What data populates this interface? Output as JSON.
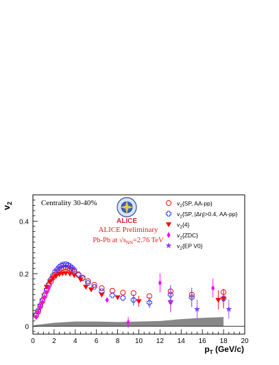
{
  "chart_data": {
    "type": "scatter",
    "title": "",
    "xlabel": "p_T (GeV/c)",
    "ylabel": "v_2",
    "xlim": [
      0,
      20
    ],
    "ylim": [
      -0.03,
      0.5
    ],
    "x_ticks": [
      "0",
      "2",
      "4",
      "6",
      "8",
      "10",
      "12",
      "14",
      "16",
      "18",
      "20"
    ],
    "y_ticks": [
      "0",
      "0.2",
      "0.4"
    ],
    "annotations": {
      "centrality": "Centrality 30-40%",
      "preliminary": "ALICE Preliminary",
      "system": "Pb-Pb at √s",
      "system_sub": "NN",
      "system_value": "=2.76 TeV",
      "logo_text": "ALICE"
    },
    "legend_position": "top-right",
    "series": [
      {
        "name": "v2{SP, AA-pp}",
        "marker": "open-circle",
        "color": "#ff0000",
        "points": [
          {
            "x": 0.3,
            "y": 0.04
          },
          {
            "x": 0.5,
            "y": 0.055
          },
          {
            "x": 0.7,
            "y": 0.075
          },
          {
            "x": 0.9,
            "y": 0.095
          },
          {
            "x": 1.1,
            "y": 0.115
          },
          {
            "x": 1.3,
            "y": 0.135
          },
          {
            "x": 1.5,
            "y": 0.155
          },
          {
            "x": 1.7,
            "y": 0.17
          },
          {
            "x": 1.9,
            "y": 0.185
          },
          {
            "x": 2.1,
            "y": 0.197
          },
          {
            "x": 2.3,
            "y": 0.207
          },
          {
            "x": 2.5,
            "y": 0.215
          },
          {
            "x": 2.7,
            "y": 0.22
          },
          {
            "x": 2.9,
            "y": 0.222
          },
          {
            "x": 3.1,
            "y": 0.223
          },
          {
            "x": 3.3,
            "y": 0.222
          },
          {
            "x": 3.5,
            "y": 0.218
          },
          {
            "x": 3.7,
            "y": 0.213
          },
          {
            "x": 3.9,
            "y": 0.208
          },
          {
            "x": 4.3,
            "y": 0.195
          },
          {
            "x": 4.7,
            "y": 0.185
          },
          {
            "x": 5.2,
            "y": 0.172
          },
          {
            "x": 5.8,
            "y": 0.158
          },
          {
            "x": 6.5,
            "y": 0.145
          },
          {
            "x": 7.5,
            "y": 0.135
          },
          {
            "x": 8.5,
            "y": 0.128
          },
          {
            "x": 9.5,
            "y": 0.126
          },
          {
            "x": 11.0,
            "y": 0.115
          },
          {
            "x": 13.0,
            "y": 0.133
          },
          {
            "x": 15.0,
            "y": 0.12
          },
          {
            "x": 18.0,
            "y": 0.13
          }
        ]
      },
      {
        "name": "v2{SP, |Δη|>0.4, AA-pp}",
        "marker": "open-cross",
        "color": "#3333ff",
        "points": [
          {
            "x": 0.3,
            "y": 0.045
          },
          {
            "x": 0.5,
            "y": 0.06
          },
          {
            "x": 0.7,
            "y": 0.08
          },
          {
            "x": 0.9,
            "y": 0.1
          },
          {
            "x": 1.1,
            "y": 0.12
          },
          {
            "x": 1.3,
            "y": 0.14
          },
          {
            "x": 1.5,
            "y": 0.16
          },
          {
            "x": 1.7,
            "y": 0.178
          },
          {
            "x": 1.9,
            "y": 0.193
          },
          {
            "x": 2.1,
            "y": 0.207
          },
          {
            "x": 2.3,
            "y": 0.217
          },
          {
            "x": 2.5,
            "y": 0.226
          },
          {
            "x": 2.7,
            "y": 0.232
          },
          {
            "x": 2.9,
            "y": 0.235
          },
          {
            "x": 3.1,
            "y": 0.236
          },
          {
            "x": 3.3,
            "y": 0.234
          },
          {
            "x": 3.5,
            "y": 0.229
          },
          {
            "x": 3.7,
            "y": 0.222
          },
          {
            "x": 3.9,
            "y": 0.214
          },
          {
            "x": 4.3,
            "y": 0.198
          },
          {
            "x": 4.7,
            "y": 0.183
          },
          {
            "x": 5.2,
            "y": 0.165
          },
          {
            "x": 5.8,
            "y": 0.15
          },
          {
            "x": 6.5,
            "y": 0.133
          },
          {
            "x": 7.5,
            "y": 0.118
          },
          {
            "x": 8.5,
            "y": 0.108
          },
          {
            "x": 9.5,
            "y": 0.1
          },
          {
            "x": 11.0,
            "y": 0.09
          },
          {
            "x": 13.0,
            "y": 0.12
          },
          {
            "x": 15.0,
            "y": 0.11
          },
          {
            "x": 18.0,
            "y": 0.105
          }
        ]
      },
      {
        "name": "v2{4}",
        "marker": "filled-triangle-down",
        "color": "#ff0000",
        "points": [
          {
            "x": 1.3,
            "y": 0.15
          },
          {
            "x": 1.6,
            "y": 0.17
          },
          {
            "x": 1.9,
            "y": 0.183
          },
          {
            "x": 2.2,
            "y": 0.192
          },
          {
            "x": 2.5,
            "y": 0.198
          },
          {
            "x": 2.8,
            "y": 0.201
          },
          {
            "x": 3.1,
            "y": 0.202
          },
          {
            "x": 3.5,
            "y": 0.199
          },
          {
            "x": 3.9,
            "y": 0.194
          },
          {
            "x": 4.5,
            "y": 0.178
          },
          {
            "x": 5.0,
            "y": 0.15
          },
          {
            "x": 5.5,
            "y": 0.14
          },
          {
            "x": 6.5,
            "y": 0.12
          },
          {
            "x": 8.0,
            "y": 0.11
          },
          {
            "x": 10.0,
            "y": 0.095
          },
          {
            "x": 13.0,
            "y": 0.09
          },
          {
            "x": 17.5,
            "y": 0.1
          },
          {
            "x": 18.0,
            "y": 0.105
          }
        ]
      },
      {
        "name": "v2{ZDC}",
        "marker": "filled-diamond",
        "color": "#ff00ff",
        "points": [
          {
            "x": 0.3,
            "y": 0.035
          },
          {
            "x": 0.5,
            "y": 0.055
          },
          {
            "x": 0.7,
            "y": 0.075
          },
          {
            "x": 0.9,
            "y": 0.092
          },
          {
            "x": 1.1,
            "y": 0.11
          },
          {
            "x": 1.3,
            "y": 0.128
          },
          {
            "x": 1.5,
            "y": 0.145
          },
          {
            "x": 7.0,
            "y": 0.1
          },
          {
            "x": 9.0,
            "y": 0.015
          },
          {
            "x": 12.0,
            "y": 0.165
          },
          {
            "x": 17.0,
            "y": 0.145
          }
        ]
      },
      {
        "name": "v2{EP V0}",
        "marker": "filled-star",
        "color": "#8844ff",
        "points": [
          {
            "x": 13.0,
            "y": 0.095
          },
          {
            "x": 15.5,
            "y": 0.065
          },
          {
            "x": 18.5,
            "y": 0.065
          }
        ]
      }
    ],
    "systematic_band": {
      "color": "#888888",
      "x": [
        0.1,
        2,
        4,
        6,
        8,
        10,
        12,
        14,
        16,
        18
      ],
      "upper": [
        0.004,
        0.013,
        0.018,
        0.018,
        0.016,
        0.018,
        0.02,
        0.027,
        0.032,
        0.035
      ]
    }
  }
}
